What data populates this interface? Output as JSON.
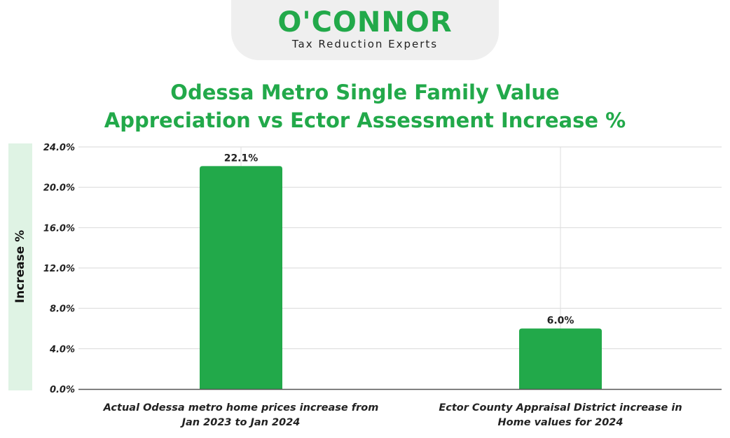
{
  "brand": {
    "name": "O'CONNOR",
    "tagline": "Tax Reduction Experts",
    "color": "#22a94a"
  },
  "chart_data": {
    "type": "bar",
    "title_lines": [
      "Odessa Metro Single Family Value",
      "Appreciation vs Ector Assessment Increase %"
    ],
    "title": "Odessa Metro Single Family Value Appreciation vs Ector Assessment Increase %",
    "xlabel": "",
    "ylabel": "Increase %",
    "categories": [
      [
        "Actual Odessa metro home prices increase from",
        "Jan 2023 to Jan 2024"
      ],
      [
        "Ector County Appraisal District increase in",
        "Home values for 2024"
      ]
    ],
    "values": [
      22.1,
      6.0
    ],
    "data_labels": [
      "22.1%",
      "6.0%"
    ],
    "ylim": [
      0,
      24
    ],
    "yticks": [
      0,
      4,
      8,
      12,
      16,
      20,
      24
    ],
    "ytick_labels": [
      "0.0%",
      "4.0%",
      "8.0%",
      "12.0%",
      "16.0%",
      "20.0%",
      "24.0%"
    ],
    "grid": true,
    "legend": "none",
    "bar_color": "#22a94a",
    "ylabel_band_color": "#dff3e4"
  }
}
